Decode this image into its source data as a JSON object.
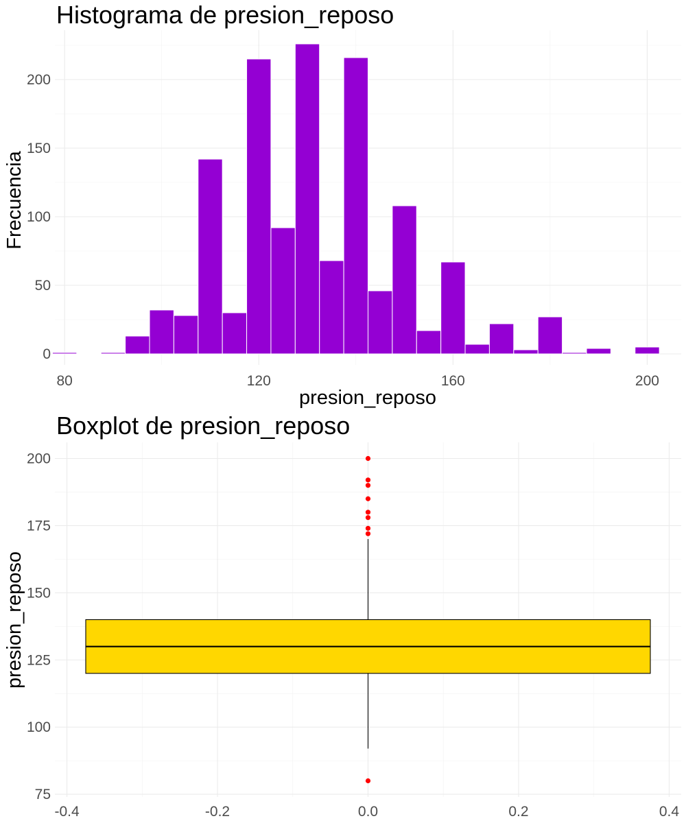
{
  "chart_data": [
    {
      "type": "bar",
      "subtype": "histogram",
      "title": "Histograma de presion_reposo",
      "xlabel": "presion_reposo",
      "ylabel": "Frecuencia",
      "bin_width": 5,
      "bin_centers": [
        80,
        85,
        90,
        95,
        100,
        105,
        110,
        115,
        120,
        125,
        130,
        135,
        140,
        145,
        150,
        155,
        160,
        165,
        170,
        175,
        180,
        185,
        190,
        195,
        200
      ],
      "values": [
        1,
        0,
        1,
        13,
        32,
        28,
        142,
        30,
        215,
        92,
        226,
        68,
        216,
        46,
        108,
        17,
        67,
        7,
        22,
        3,
        27,
        1,
        4,
        0,
        5
      ],
      "xlim": [
        78,
        207
      ],
      "ylim": [
        -8,
        236
      ],
      "x_ticks": [
        "80",
        "120",
        "160",
        "200"
      ],
      "x_tick_values": [
        80,
        120,
        160,
        200
      ],
      "y_ticks": [
        "0",
        "50",
        "100",
        "150",
        "200"
      ],
      "y_tick_values": [
        0,
        50,
        100,
        150,
        200
      ],
      "fill_color": "#9400D3",
      "border_color": "#ffffff",
      "grid": true
    },
    {
      "type": "box",
      "title": "Boxplot de presion_reposo",
      "xlabel": "",
      "ylabel": "presion_reposo",
      "x": 0,
      "box_width": 0.75,
      "q1": 120,
      "median": 130,
      "q3": 140,
      "whisker_low": 92,
      "whisker_high": 170,
      "outliers": [
        80,
        172,
        174,
        178,
        180,
        185,
        190,
        192,
        200
      ],
      "xlim": [
        -0.416,
        0.416
      ],
      "ylim": [
        74,
        206
      ],
      "x_ticks": [
        "-0.4",
        "-0.2",
        "0.0",
        "0.2",
        "0.4"
      ],
      "x_tick_values": [
        -0.4,
        -0.2,
        0,
        0.2,
        0.4
      ],
      "y_ticks": [
        "75",
        "100",
        "125",
        "150",
        "175",
        "200"
      ],
      "y_tick_values": [
        75,
        100,
        125,
        150,
        175,
        200
      ],
      "fill_color": "#FFD700",
      "outline_color": "#000000",
      "outlier_color": "#FF0000",
      "grid": true
    }
  ]
}
